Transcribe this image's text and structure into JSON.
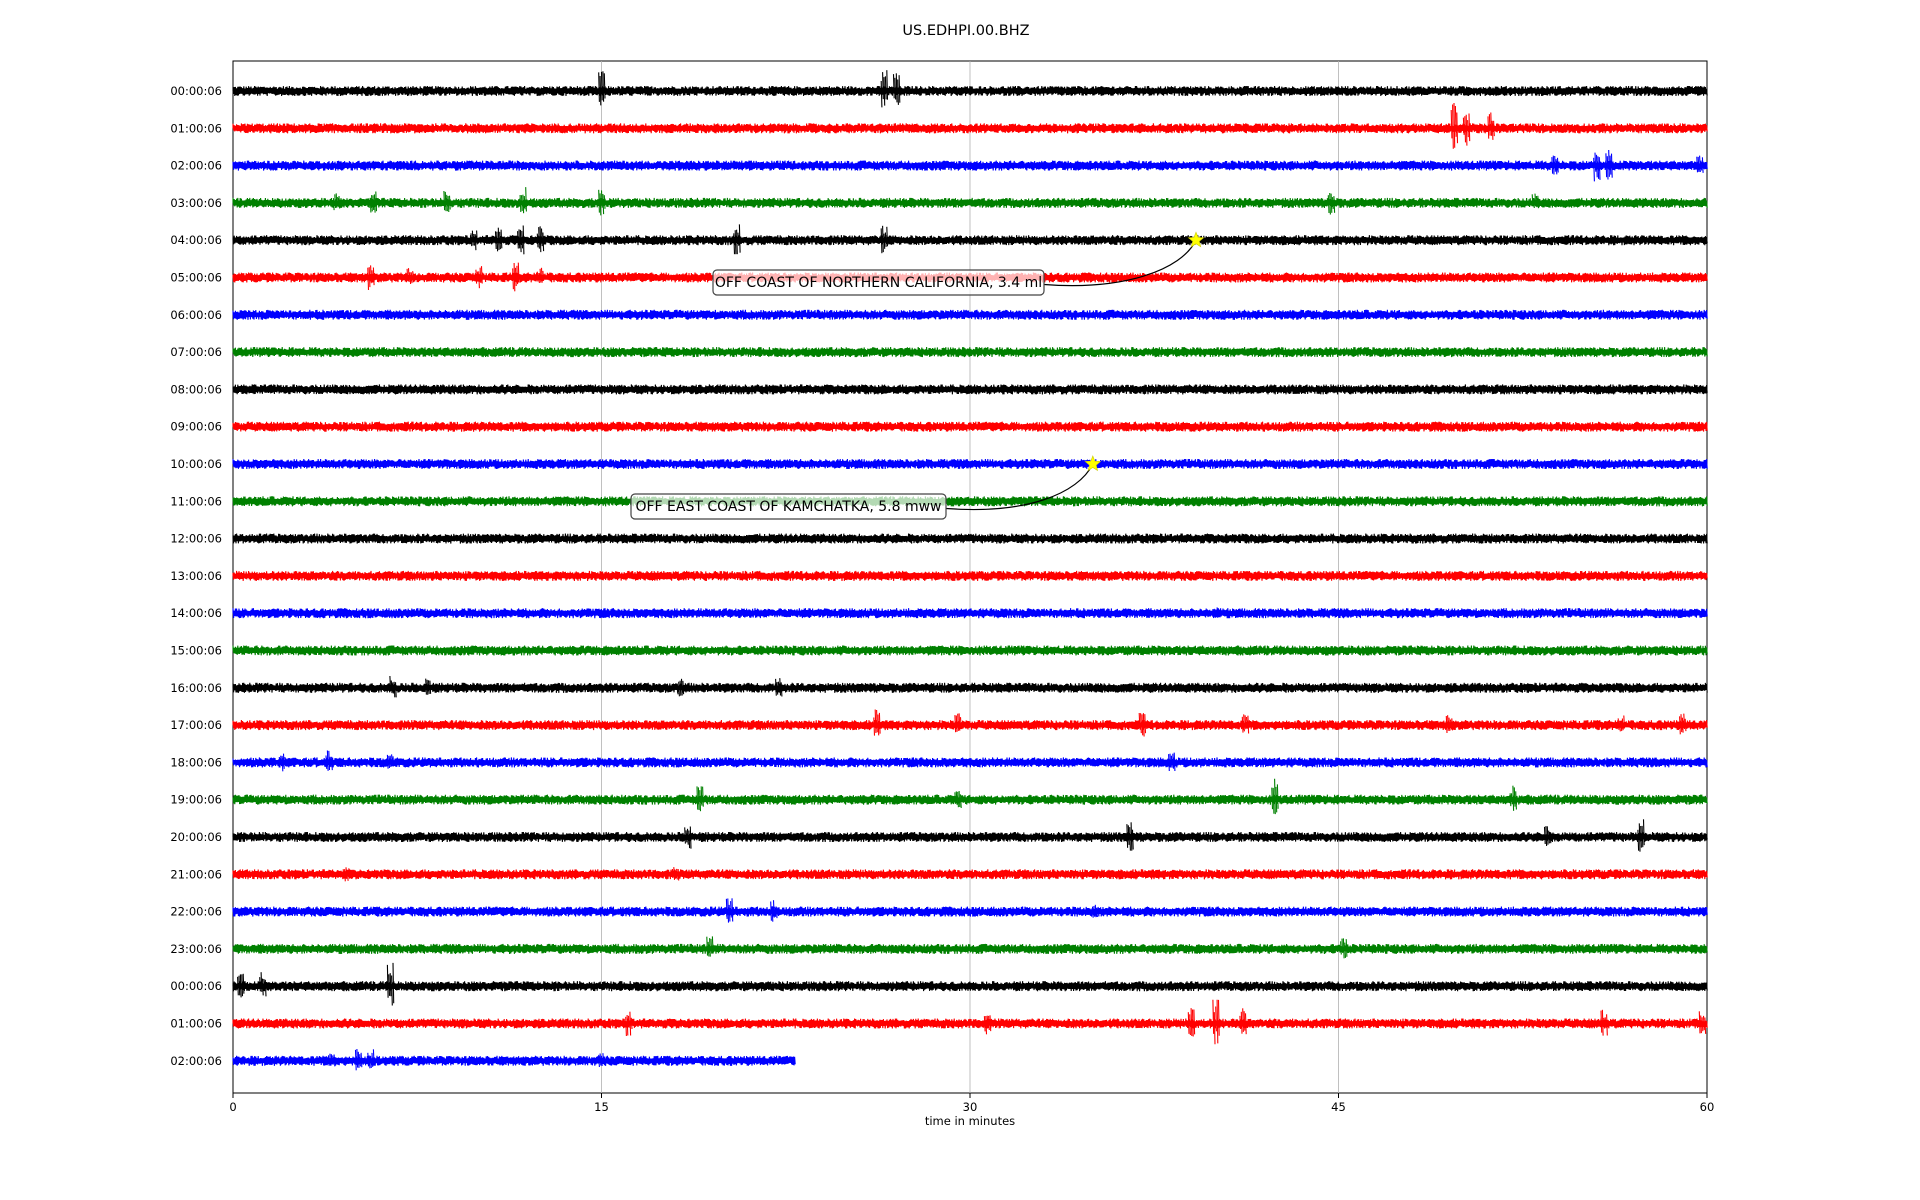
{
  "chart_data": {
    "type": "line",
    "title": "US.EDHPI.00.BHZ",
    "xlabel": "time in minutes",
    "ylabel": "",
    "xlim": [
      0,
      60
    ],
    "xticks": [
      "0",
      "15",
      "30",
      "45",
      "60"
    ],
    "xtick_values": [
      0,
      15,
      30,
      45,
      60
    ],
    "grid": "vertical",
    "colors": [
      "#000000",
      "#ff0000",
      "#0000ff",
      "#008000"
    ],
    "trace_rows": [
      {
        "label": "00:00:06",
        "color": "#000000",
        "end": 60,
        "spikes": [
          [
            15.0,
            20
          ],
          [
            26.5,
            22
          ],
          [
            27.0,
            18
          ]
        ]
      },
      {
        "label": "01:00:06",
        "color": "#ff0000",
        "end": 60,
        "spikes": [
          [
            49.7,
            28
          ],
          [
            50.2,
            20
          ],
          [
            51.2,
            16
          ]
        ]
      },
      {
        "label": "02:00:06",
        "color": "#0000ff",
        "end": 60,
        "spikes": [
          [
            53.8,
            10
          ],
          [
            55.5,
            18
          ],
          [
            56.0,
            16
          ],
          [
            59.7,
            10
          ]
        ]
      },
      {
        "label": "03:00:06",
        "color": "#008000",
        "end": 60,
        "spikes": [
          [
            4.2,
            10
          ],
          [
            5.7,
            12
          ],
          [
            8.7,
            14
          ],
          [
            11.8,
            16
          ],
          [
            15.0,
            14
          ],
          [
            44.7,
            14
          ],
          [
            53.0,
            10
          ]
        ]
      },
      {
        "label": "04:00:06",
        "color": "#000000",
        "end": 60,
        "spikes": [
          [
            9.8,
            12
          ],
          [
            10.8,
            14
          ],
          [
            11.7,
            18
          ],
          [
            12.5,
            14
          ],
          [
            20.5,
            16
          ],
          [
            26.5,
            16
          ]
        ]
      },
      {
        "label": "05:00:06",
        "color": "#ff0000",
        "end": 60,
        "spikes": [
          [
            5.6,
            14
          ],
          [
            7.2,
            10
          ],
          [
            10.0,
            12
          ],
          [
            11.5,
            16
          ],
          [
            12.5,
            10
          ]
        ]
      },
      {
        "label": "06:00:06",
        "color": "#0000ff",
        "end": 60,
        "spikes": []
      },
      {
        "label": "07:00:06",
        "color": "#008000",
        "end": 60,
        "spikes": []
      },
      {
        "label": "08:00:06",
        "color": "#000000",
        "end": 60,
        "spikes": []
      },
      {
        "label": "09:00:06",
        "color": "#ff0000",
        "end": 60,
        "spikes": []
      },
      {
        "label": "10:00:06",
        "color": "#0000ff",
        "end": 60,
        "spikes": []
      },
      {
        "label": "11:00:06",
        "color": "#008000",
        "end": 60,
        "spikes": []
      },
      {
        "label": "12:00:06",
        "color": "#000000",
        "end": 60,
        "spikes": []
      },
      {
        "label": "13:00:06",
        "color": "#ff0000",
        "end": 60,
        "spikes": []
      },
      {
        "label": "14:00:06",
        "color": "#0000ff",
        "end": 60,
        "spikes": [
          [
            40.0,
            6
          ]
        ]
      },
      {
        "label": "15:00:06",
        "color": "#008000",
        "end": 60,
        "spikes": []
      },
      {
        "label": "16:00:06",
        "color": "#000000",
        "end": 60,
        "spikes": [
          [
            6.5,
            12
          ],
          [
            7.9,
            10
          ],
          [
            18.2,
            10
          ],
          [
            22.2,
            10
          ]
        ]
      },
      {
        "label": "17:00:06",
        "color": "#ff0000",
        "end": 60,
        "spikes": [
          [
            26.2,
            16
          ],
          [
            29.5,
            12
          ],
          [
            37.0,
            14
          ],
          [
            41.2,
            12
          ],
          [
            49.5,
            10
          ],
          [
            56.5,
            10
          ],
          [
            59.0,
            12
          ]
        ]
      },
      {
        "label": "18:00:06",
        "color": "#0000ff",
        "end": 60,
        "spikes": [
          [
            2.0,
            10
          ],
          [
            3.9,
            12
          ],
          [
            6.4,
            8
          ],
          [
            38.2,
            12
          ]
        ]
      },
      {
        "label": "19:00:06",
        "color": "#008000",
        "end": 60,
        "spikes": [
          [
            19.0,
            14
          ],
          [
            29.5,
            10
          ],
          [
            42.4,
            22
          ],
          [
            52.1,
            14
          ]
        ]
      },
      {
        "label": "20:00:06",
        "color": "#000000",
        "end": 60,
        "spikes": [
          [
            18.5,
            14
          ],
          [
            36.5,
            16
          ],
          [
            53.5,
            12
          ],
          [
            57.3,
            18
          ]
        ]
      },
      {
        "label": "21:00:06",
        "color": "#ff0000",
        "end": 60,
        "spikes": [
          [
            4.6,
            8
          ],
          [
            18.0,
            8
          ]
        ]
      },
      {
        "label": "22:00:06",
        "color": "#0000ff",
        "end": 60,
        "spikes": [
          [
            20.2,
            14
          ],
          [
            22.0,
            12
          ],
          [
            35.1,
            8
          ]
        ]
      },
      {
        "label": "23:00:06",
        "color": "#008000",
        "end": 60,
        "spikes": [
          [
            19.4,
            14
          ],
          [
            45.2,
            12
          ]
        ]
      },
      {
        "label": "00:00:06",
        "color": "#000000",
        "end": 60,
        "spikes": [
          [
            0.3,
            14
          ],
          [
            1.2,
            14
          ],
          [
            6.4,
            24
          ]
        ]
      },
      {
        "label": "01:00:06",
        "color": "#ff0000",
        "end": 60,
        "spikes": [
          [
            16.1,
            14
          ],
          [
            30.7,
            12
          ],
          [
            39.0,
            16
          ],
          [
            40.0,
            24
          ],
          [
            41.1,
            16
          ],
          [
            55.8,
            14
          ],
          [
            59.8,
            14
          ]
        ]
      },
      {
        "label": "02:00:06",
        "color": "#0000ff",
        "end": 22.9,
        "spikes": [
          [
            4.0,
            8
          ],
          [
            5.1,
            12
          ],
          [
            5.6,
            12
          ],
          [
            15.0,
            8
          ]
        ]
      }
    ],
    "annotations": [
      {
        "text": "OFF COAST OF NORTHERN CALIFORNIA, 3.4 ml",
        "row": 4,
        "x": 39.2
      },
      {
        "text": "OFF EAST COAST OF KAMCHATKA, 5.8 mww",
        "row": 10,
        "x": 35.0
      }
    ]
  }
}
